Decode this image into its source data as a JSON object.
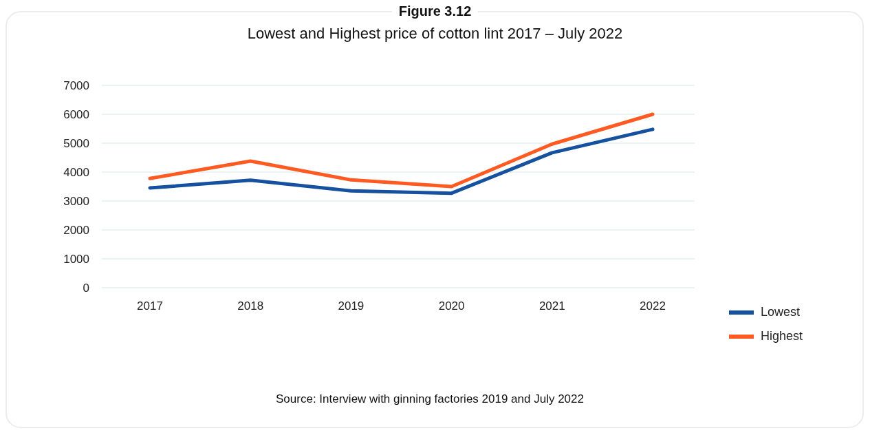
{
  "chart_data": {
    "type": "line",
    "title": "Figure 3.12",
    "subtitle": "Lowest and Highest price of cotton lint 2017 – July 2022",
    "annotations": [
      "Source: Interview with ginning factories 2019 and July 2022"
    ],
    "categories": [
      "2017",
      "2018",
      "2019",
      "2020",
      "2021",
      "2022"
    ],
    "series": [
      {
        "name": "Lowest",
        "color": "#15519e",
        "values": [
          3450,
          3720,
          3350,
          3270,
          4670,
          5480
        ]
      },
      {
        "name": "Highest",
        "color": "#ff5a22",
        "values": [
          3780,
          4380,
          3730,
          3500,
          4970,
          6000
        ]
      }
    ],
    "ylim": [
      0,
      7000
    ],
    "yticks": [
      0,
      1000,
      2000,
      3000,
      4000,
      5000,
      6000,
      7000
    ],
    "grid": "y",
    "legend": "bottom right"
  }
}
